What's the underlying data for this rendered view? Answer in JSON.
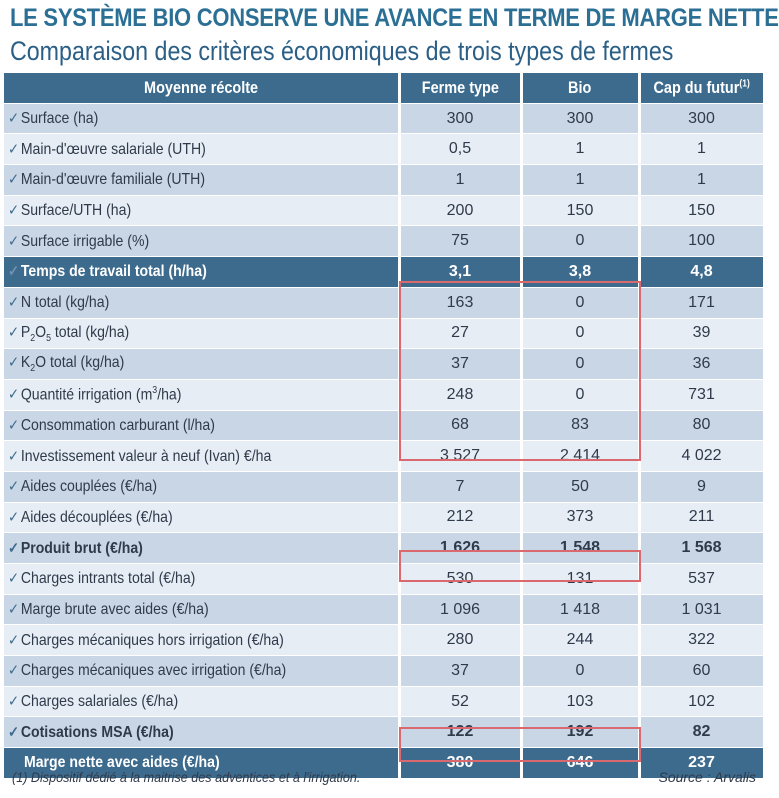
{
  "title": "LE SYSTÈME BIO CONSERVE UNE AVANCE EN TERME DE MARGE NETTE",
  "subtitle": "Comparaison des critères économiques de trois types de fermes",
  "table": {
    "headers": [
      "Moyenne récolte",
      "Ferme type",
      "Bio",
      "Cap du futur"
    ],
    "header_footnote_mark": "(1)",
    "rows": [
      {
        "label": "Surface (ha)",
        "values": [
          "300",
          "300",
          "300"
        ]
      },
      {
        "label": "Main-d'œuvre salariale (UTH)",
        "values": [
          "0,5",
          "1",
          "1"
        ]
      },
      {
        "label": "Main-d'œuvre familiale (UTH)",
        "values": [
          "1",
          "1",
          "1"
        ]
      },
      {
        "label": "Surface/UTH (ha)",
        "values": [
          "200",
          "150",
          "150"
        ]
      },
      {
        "label": "Surface irrigable (%)",
        "values": [
          "75",
          "0",
          "100"
        ]
      },
      {
        "label": "Temps de travail total (h/ha)",
        "values": [
          "3,1",
          "3,8",
          "4,8"
        ]
      },
      {
        "label": "N total (kg/ha)",
        "values": [
          "163",
          "0",
          "171"
        ]
      },
      {
        "label_prefix": "P",
        "label_sub1": "2",
        "label_mid": "O",
        "label_sub2": "5",
        "label_suffix": " total (kg/ha)",
        "values": [
          "27",
          "0",
          "39"
        ]
      },
      {
        "label_prefix": "K",
        "label_sub1": "2",
        "label_mid": "O total (kg/ha)",
        "values": [
          "37",
          "0",
          "36"
        ]
      },
      {
        "label_prefix": "Quantité irrigation (m",
        "label_sup": "3",
        "label_suffix": "/ha)",
        "values": [
          "248",
          "0",
          "731"
        ]
      },
      {
        "label": "Consommation carburant (l/ha)",
        "values": [
          "68",
          "83",
          "80"
        ]
      },
      {
        "label": "Investissement valeur à neuf (Ivan) €/ha",
        "values": [
          "3 527",
          "2 414",
          "4 022"
        ]
      },
      {
        "label": "Aides couplées (€/ha)",
        "values": [
          "7",
          "50",
          "9"
        ]
      },
      {
        "label": "Aides découplées (€/ha)",
        "values": [
          "212",
          "373",
          "211"
        ]
      },
      {
        "label": "Produit brut (€/ha)",
        "values": [
          "1 626",
          "1 548",
          "1 568"
        ]
      },
      {
        "label": "Charges intrants total (€/ha)",
        "values": [
          "530",
          "131",
          "537"
        ]
      },
      {
        "label": "Marge brute avec aides (€/ha)",
        "values": [
          "1 096",
          "1 418",
          "1 031"
        ]
      },
      {
        "label": "Charges mécaniques hors irrigation (€/ha)",
        "values": [
          "280",
          "244",
          "322"
        ]
      },
      {
        "label": "Charges mécaniques avec irrigation (€/ha)",
        "values": [
          "37",
          "0",
          "60"
        ]
      },
      {
        "label": "Charges salariales (€/ha)",
        "values": [
          "52",
          "103",
          "102"
        ]
      },
      {
        "label": "Cotisations MSA (€/ha)",
        "values": [
          "122",
          "192",
          "82"
        ]
      },
      {
        "label": "Marge nette avec aides (€/ha)",
        "values": [
          "380",
          "646",
          "237"
        ]
      }
    ]
  },
  "footnote": "(1) Dispositif dédié à la maitrise des adventices et à l'irrigation.",
  "source": "Source : Arvalis",
  "check_glyph": "✓",
  "colors": {
    "header": "#3d6b8e",
    "row_dark": "#c9d6e6",
    "row_light": "#e6edf5",
    "highlight_box": "#d9686f",
    "title": "#2b6f95"
  }
}
